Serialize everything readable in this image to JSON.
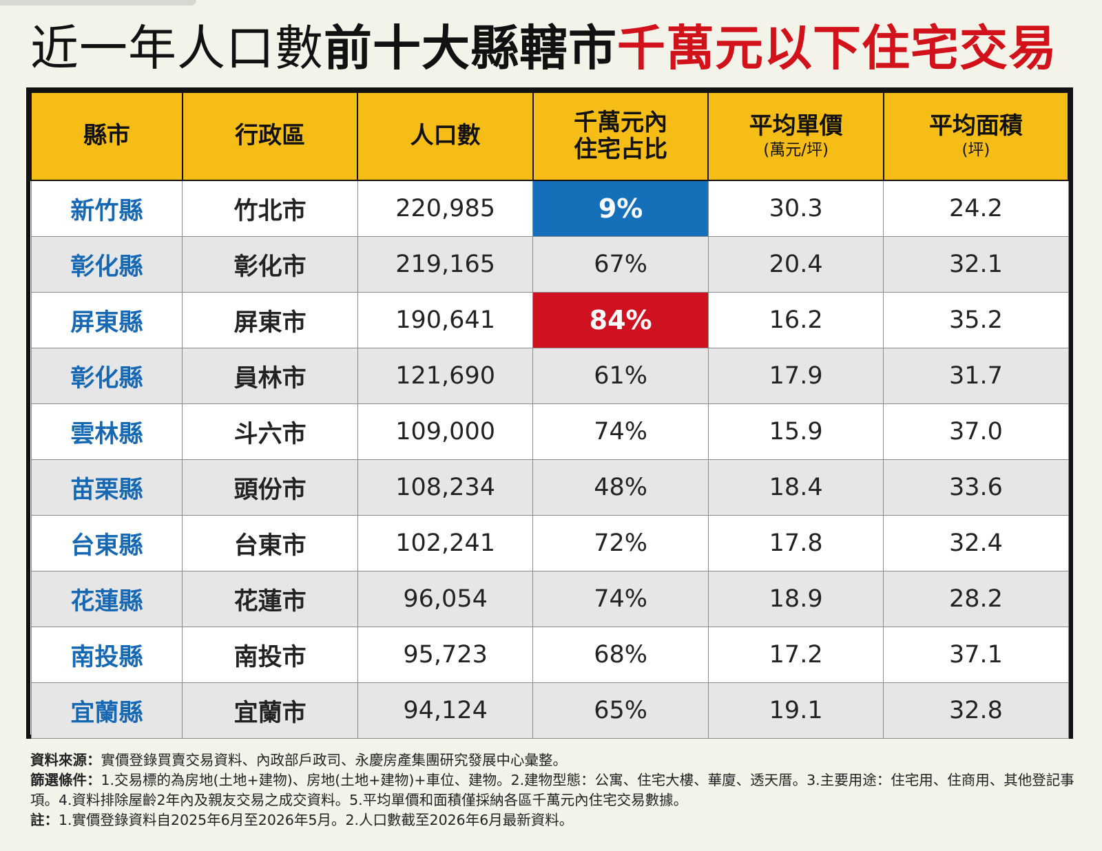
{
  "title": {
    "part1": "近一年人口數",
    "part2": "前十大縣轄市",
    "part3": "千萬元以下住宅交易"
  },
  "chart_data": {
    "type": "table",
    "columns": [
      {
        "label": "縣市",
        "sub": ""
      },
      {
        "label": "行政區",
        "sub": ""
      },
      {
        "label": "人口數",
        "sub": ""
      },
      {
        "label": "千萬元內\n住宅占比",
        "sub": ""
      },
      {
        "label": "平均單價",
        "sub": "(萬元/坪)"
      },
      {
        "label": "平均面積",
        "sub": "(坪)"
      }
    ],
    "rows": [
      {
        "county": "新竹縣",
        "district": "竹北市",
        "population": "220,985",
        "share": "9%",
        "unit_price": "30.3",
        "area": "24.2",
        "highlight": "blue"
      },
      {
        "county": "彰化縣",
        "district": "彰化市",
        "population": "219,165",
        "share": "67%",
        "unit_price": "20.4",
        "area": "32.1",
        "highlight": ""
      },
      {
        "county": "屏東縣",
        "district": "屏東市",
        "population": "190,641",
        "share": "84%",
        "unit_price": "16.2",
        "area": "35.2",
        "highlight": "red"
      },
      {
        "county": "彰化縣",
        "district": "員林市",
        "population": "121,690",
        "share": "61%",
        "unit_price": "17.9",
        "area": "31.7",
        "highlight": ""
      },
      {
        "county": "雲林縣",
        "district": "斗六市",
        "population": "109,000",
        "share": "74%",
        "unit_price": "15.9",
        "area": "37.0",
        "highlight": ""
      },
      {
        "county": "苗栗縣",
        "district": "頭份市",
        "population": "108,234",
        "share": "48%",
        "unit_price": "18.4",
        "area": "33.6",
        "highlight": ""
      },
      {
        "county": "台東縣",
        "district": "台東市",
        "population": "102,241",
        "share": "72%",
        "unit_price": "17.8",
        "area": "32.4",
        "highlight": ""
      },
      {
        "county": "花蓮縣",
        "district": "花蓮市",
        "population": "96,054",
        "share": "74%",
        "unit_price": "18.9",
        "area": "28.2",
        "highlight": ""
      },
      {
        "county": "南投縣",
        "district": "南投市",
        "population": "95,723",
        "share": "68%",
        "unit_price": "17.2",
        "area": "37.1",
        "highlight": ""
      },
      {
        "county": "宜蘭縣",
        "district": "宜蘭市",
        "population": "94,124",
        "share": "65%",
        "unit_price": "19.1",
        "area": "32.8",
        "highlight": ""
      }
    ]
  },
  "colors": {
    "header_bg": "#f6bd16",
    "county_text": "#1768b3",
    "highlight_blue": "#1570b9",
    "highlight_red": "#cf1120",
    "title_red": "#d1121b"
  },
  "notes": {
    "source_label": "資料來源：",
    "source_text": "實價登錄買賣交易資料、內政部戶政司、永慶房產集團研究發展中心彙整。",
    "filter_label": "篩選條件：",
    "filter_text": "1.交易標的為房地(土地+建物)、房地(土地+建物)+車位、建物。2.建物型態：公寓、住宅大樓、華廈、透天厝。3.主要用途：住宅用、住商用、其他登記事項。4.資料排除屋齡2年內及親友交易之成交資料。5.平均單價和面積僅採納各區千萬元內住宅交易數據。",
    "note_label": "註：",
    "note_text": "1.實價登錄資料自2025年6月至2026年5月。2.人口數截至2026年6月最新資料。"
  }
}
